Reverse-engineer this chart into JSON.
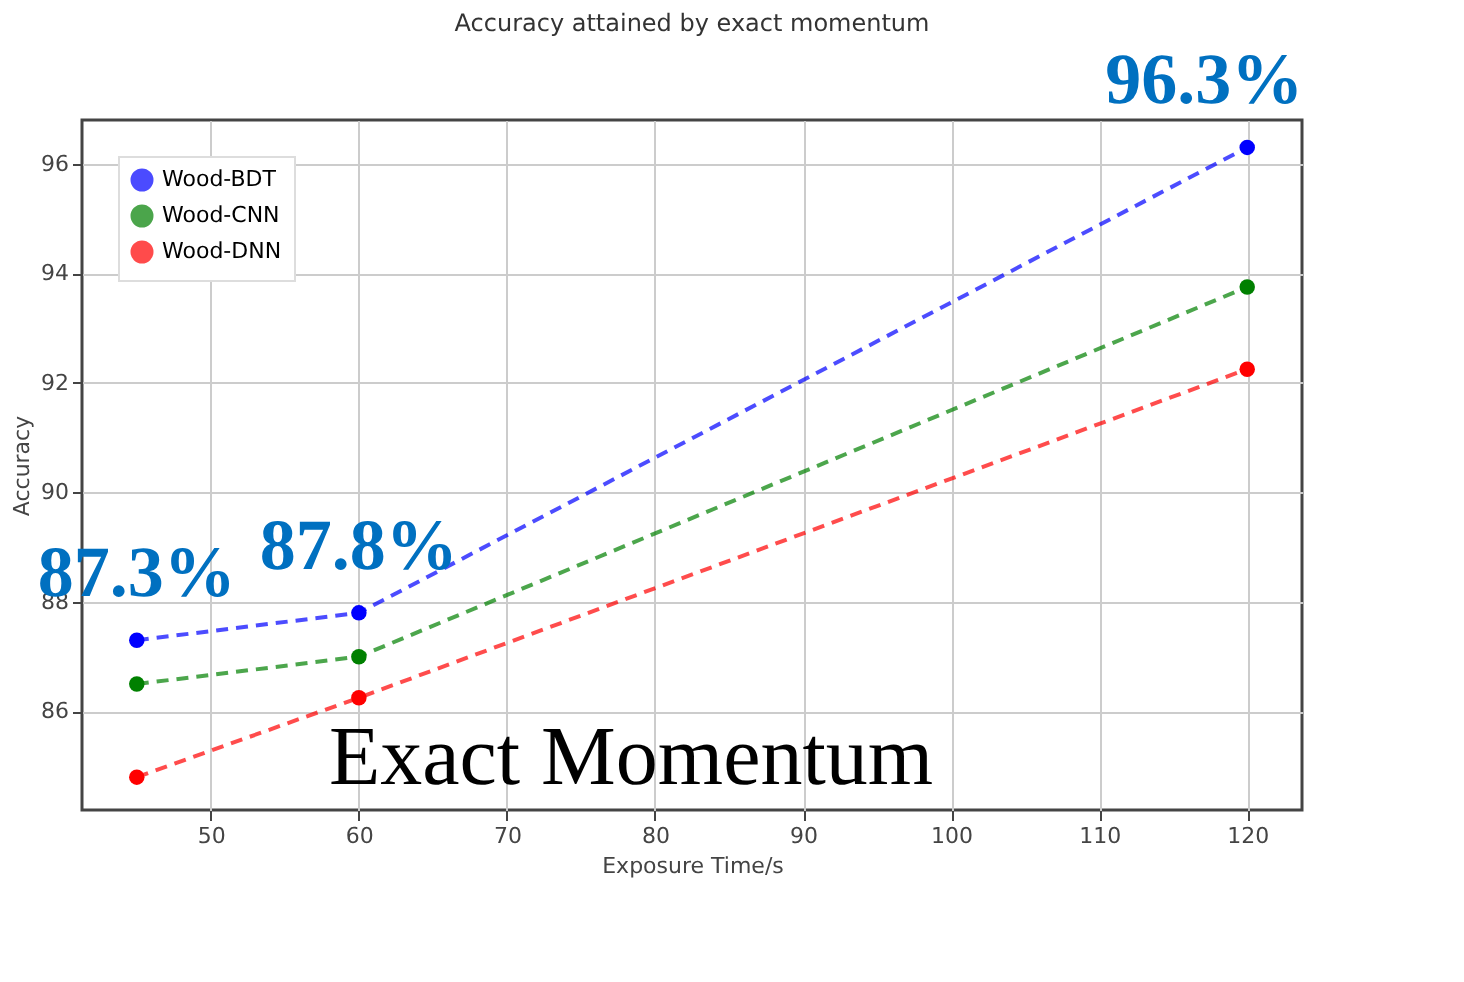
{
  "chart_data": {
    "type": "line",
    "title": "Accuracy attained by exact momentum",
    "xlabel": "Exposure Time/s",
    "ylabel": "Accuracy",
    "x": [
      45,
      60,
      120
    ],
    "series": [
      {
        "name": "Wood-BDT",
        "color": "#0000ff",
        "values": [
          87.3,
          87.8,
          96.3
        ]
      },
      {
        "name": "Wood-CNN",
        "color": "#008000",
        "values": [
          86.5,
          87.0,
          93.75
        ]
      },
      {
        "name": "Wood-DNN",
        "color": "#ff0000",
        "values": [
          84.8,
          86.25,
          92.25
        ]
      }
    ],
    "xlim": [
      41.3,
      123.7
    ],
    "xticks": [
      50,
      60,
      70,
      80,
      90,
      100,
      110,
      120
    ],
    "ylim": [
      84.2,
      96.8
    ],
    "yticks": [
      86,
      88,
      90,
      92,
      94,
      96
    ],
    "grid": true,
    "legend": "top left",
    "marker": "circle",
    "line_style": "dashed",
    "annotations": [
      {
        "text": "87.3%",
        "x": 45,
        "y": 87.3
      },
      {
        "text": "87.8%",
        "x": 60,
        "y": 87.8
      },
      {
        "text": "96.3%",
        "x": 120,
        "y": 96.3
      },
      "Exact Momentum"
    ]
  }
}
